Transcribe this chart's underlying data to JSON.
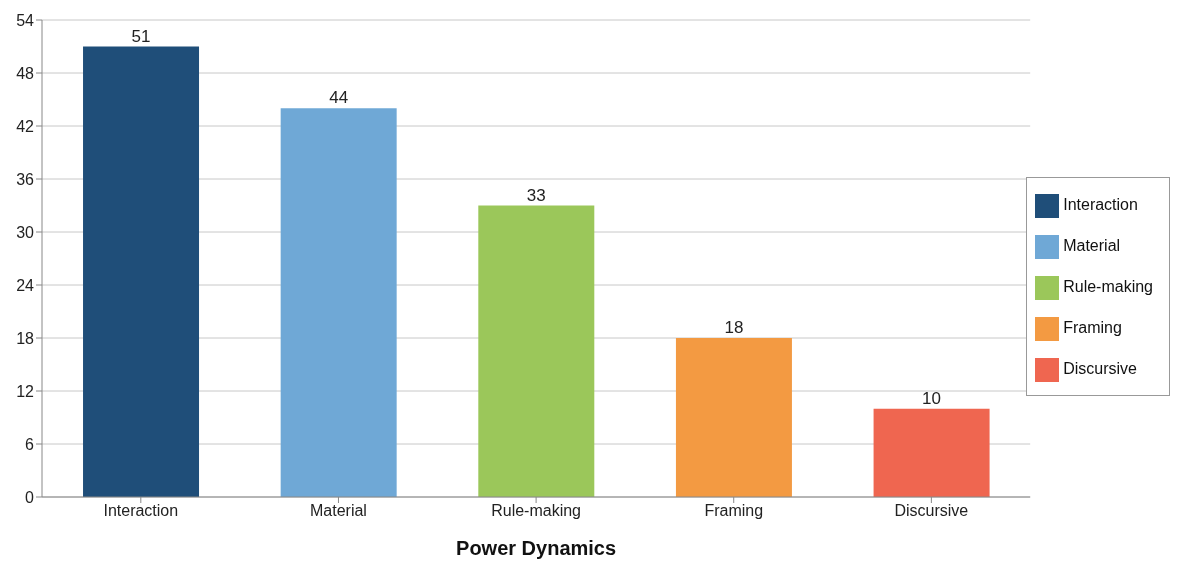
{
  "chart_data": {
    "type": "bar",
    "xlabel": "Power Dynamics",
    "categories": [
      "Interaction",
      "Material",
      "Rule-making",
      "Framing",
      "Discursive"
    ],
    "series": [
      {
        "name": "Interaction",
        "color": "#1f4e79",
        "values": [
          51,
          null,
          null,
          null,
          null
        ]
      },
      {
        "name": "Material",
        "color": "#6fa8d6",
        "values": [
          null,
          44,
          null,
          null,
          null
        ]
      },
      {
        "name": "Rule-making",
        "color": "#9bc75a",
        "values": [
          null,
          null,
          33,
          null,
          null
        ]
      },
      {
        "name": "Framing",
        "color": "#f39a42",
        "values": [
          null,
          null,
          null,
          18,
          null
        ]
      },
      {
        "name": "Discursive",
        "color": "#ef6650",
        "values": [
          null,
          null,
          null,
          null,
          10
        ]
      }
    ],
    "stacked": true,
    "ylim": [
      0,
      54
    ],
    "yticks": [
      0,
      6,
      12,
      18,
      24,
      30,
      36,
      42,
      48,
      54
    ],
    "grid": "y",
    "legend": "right",
    "data_labels": true
  }
}
